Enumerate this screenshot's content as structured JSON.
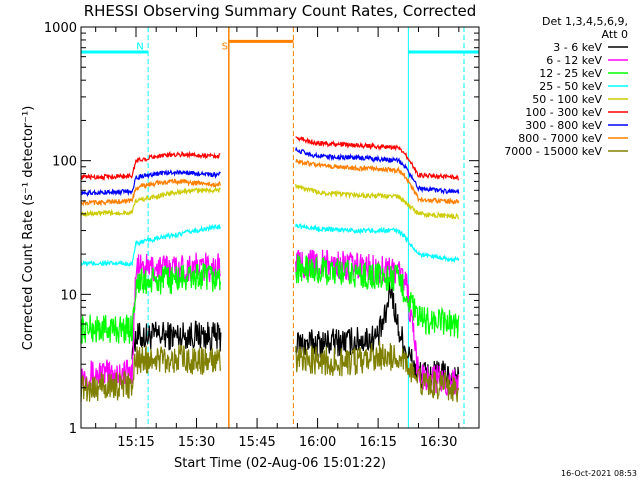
{
  "chart_data": {
    "type": "line",
    "title": "RHESSI Observing Summary Count Rates, Corrected",
    "xlabel": "Start Time (02-Aug-06 15:01:22)",
    "ylabel": "Corrected Count Rate (s⁻¹ detector⁻¹)",
    "y_scale": "log",
    "ylim": [
      1,
      1000
    ],
    "xlim": [
      "15:01:22",
      "16:40:00"
    ],
    "x_ticks": [
      "15:15",
      "15:30",
      "15:45",
      "16:00",
      "16:15",
      "16:30"
    ],
    "y_ticks": [
      "1",
      "10",
      "100",
      "1000"
    ],
    "grid": false,
    "legend_header": [
      "Det 1,3,4,5,6,9,",
      "Att 0"
    ],
    "legend_position": "right",
    "timestamp": "16-Oct-2021 08:53",
    "annotations": [
      {
        "text": "N",
        "time": "15:16",
        "color": "#00ffff"
      },
      {
        "text": "S",
        "time": "15:37",
        "color": "#ff8000"
      }
    ],
    "colors": {
      "night": "#00ffff",
      "saa": "#ff8000"
    },
    "night_intervals": [
      [
        "15:01:22",
        "15:18:00"
      ],
      [
        "16:22:30",
        "16:40:00"
      ]
    ],
    "saa_interval": [
      "15:38:00",
      "15:54:00"
    ],
    "data_gaps": [
      [
        "15:36:00",
        "15:54:30"
      ]
    ],
    "series": [
      {
        "name": "3 - 6 keV",
        "color": "#000000",
        "x": [
          "15:14",
          "15:15",
          "15:20",
          "15:25",
          "15:30",
          "15:35",
          "15:54:30",
          "16:00",
          "16:10",
          "16:15",
          "16:17",
          "16:18",
          "16:20",
          "16:22",
          "16:25",
          "16:30",
          "16:35"
        ],
        "values": [
          4.2,
          4.8,
          4.9,
          4.9,
          5.0,
          4.8,
          4.2,
          4.3,
          4.5,
          4.8,
          7,
          12,
          5.5,
          3.8,
          2.5,
          2.5,
          2.4
        ]
      },
      {
        "name": "6 - 12 keV",
        "color": "#ff00ff",
        "x": [
          "15:01:22",
          "15:14",
          "15:15",
          "15:20",
          "15:25",
          "15:30",
          "15:35",
          "15:54:30",
          "16:00",
          "16:10",
          "16:20",
          "16:22",
          "16:25",
          "16:30",
          "16:35"
        ],
        "values": [
          2.5,
          2.6,
          15.5,
          15.7,
          15.8,
          16,
          15.8,
          17,
          17,
          16,
          15,
          12,
          2.5,
          2.3,
          2.2
        ]
      },
      {
        "name": "12 - 25 keV",
        "color": "#00ff00",
        "x": [
          "15:01:22",
          "15:14",
          "15:15",
          "15:20",
          "15:25",
          "15:30",
          "15:35",
          "15:54:30",
          "16:00",
          "16:10",
          "16:20",
          "16:22",
          "16:25",
          "16:30",
          "16:35"
        ],
        "values": [
          5.5,
          5.5,
          12,
          12.5,
          13,
          13.5,
          13,
          15.5,
          15,
          14,
          13,
          10,
          6.5,
          6.2,
          6
        ]
      },
      {
        "name": "25 - 50 keV",
        "color": "#00ffff",
        "x": [
          "15:01:22",
          "15:14",
          "15:15",
          "15:20",
          "15:25",
          "15:30",
          "15:35",
          "15:54:30",
          "16:00",
          "16:10",
          "16:20",
          "16:22",
          "16:25",
          "16:30",
          "16:35"
        ],
        "values": [
          17,
          17,
          24,
          26,
          28,
          30,
          32,
          33,
          31,
          30,
          30,
          26,
          20,
          19,
          18
        ]
      },
      {
        "name": "50 - 100 keV",
        "color": "#cccc00",
        "x": [
          "15:01:22",
          "15:14",
          "15:15",
          "15:20",
          "15:25",
          "15:30",
          "15:35",
          "15:54:30",
          "16:00",
          "16:10",
          "16:20",
          "16:22",
          "16:25",
          "16:30",
          "16:35"
        ],
        "values": [
          40,
          41,
          50,
          54,
          58,
          60,
          60,
          65,
          58,
          55,
          54,
          48,
          40,
          39,
          38
        ]
      },
      {
        "name": "100 - 300 keV",
        "color": "#ff0000",
        "x": [
          "15:01:22",
          "15:14",
          "15:15",
          "15:20",
          "15:25",
          "15:30",
          "15:35",
          "15:54:30",
          "16:00",
          "16:10",
          "16:20",
          "16:22",
          "16:25",
          "16:30",
          "16:35"
        ],
        "values": [
          75,
          77,
          100,
          108,
          112,
          110,
          108,
          150,
          135,
          130,
          125,
          110,
          78,
          76,
          75
        ]
      },
      {
        "name": "300 - 800 keV",
        "color": "#0000ff",
        "x": [
          "15:01:22",
          "15:14",
          "15:15",
          "15:20",
          "15:25",
          "15:30",
          "15:35",
          "15:54:30",
          "16:00",
          "16:10",
          "16:20",
          "16:22",
          "16:25",
          "16:30",
          "16:35"
        ],
        "values": [
          57,
          59,
          75,
          80,
          82,
          80,
          78,
          120,
          108,
          105,
          100,
          88,
          62,
          60,
          58
        ]
      },
      {
        "name": "800 - 7000 keV",
        "color": "#ff8000",
        "x": [
          "15:01:22",
          "15:14",
          "15:15",
          "15:20",
          "15:25",
          "15:30",
          "15:35",
          "15:54:30",
          "16:00",
          "16:10",
          "16:20",
          "16:22",
          "16:25",
          "16:30",
          "16:35"
        ],
        "values": [
          48,
          50,
          63,
          68,
          70,
          68,
          66,
          100,
          92,
          88,
          85,
          75,
          52,
          50,
          49
        ]
      },
      {
        "name": "7000 - 15000 keV",
        "color": "#808000",
        "x": [
          "15:01:22",
          "15:14",
          "15:15",
          "15:20",
          "15:25",
          "15:30",
          "15:35",
          "15:54:30",
          "16:00",
          "16:10",
          "16:15",
          "16:20",
          "16:22",
          "16:25",
          "16:30",
          "16:35"
        ],
        "values": [
          2,
          2.1,
          3.2,
          3.3,
          3.3,
          3.2,
          3.1,
          3.3,
          3.2,
          3.1,
          3.5,
          3.4,
          3.0,
          2.2,
          2.1,
          2.0
        ]
      }
    ]
  }
}
